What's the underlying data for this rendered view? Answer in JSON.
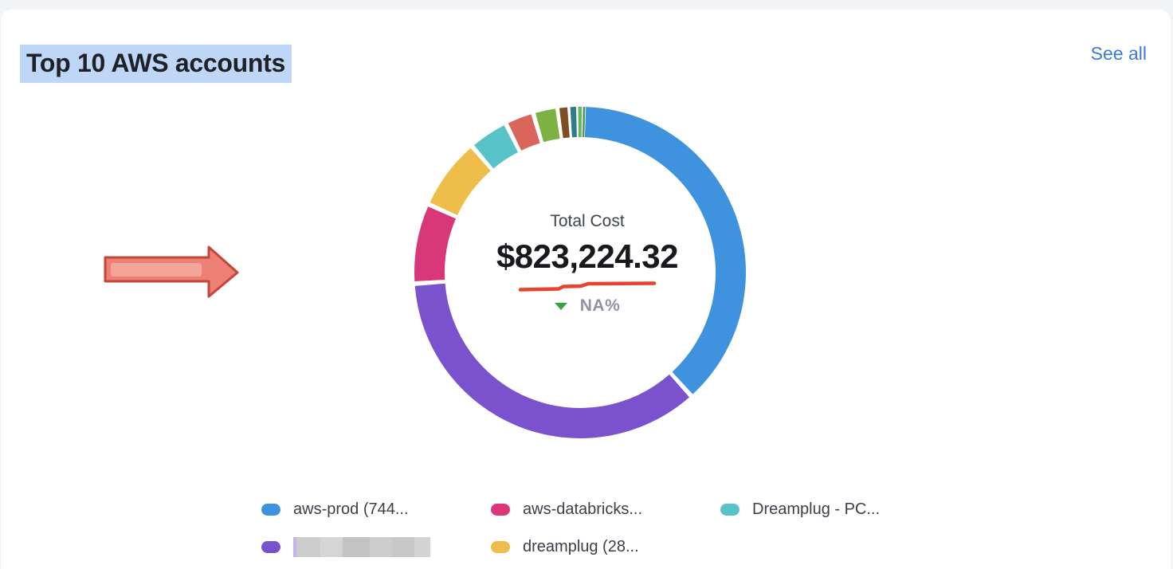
{
  "header": {
    "title": "Top 10 AWS accounts",
    "see_all_label": "See all"
  },
  "center": {
    "label": "Total Cost",
    "value": "$823,224.32",
    "delta_value": "NA%",
    "delta_direction": "down"
  },
  "chart_data": {
    "type": "pie",
    "variant": "donut",
    "title": "Top 10 AWS accounts",
    "center_label": "Total Cost",
    "center_value": "$823,224.32",
    "delta": "NA%",
    "legend_position": "bottom",
    "segments": [
      {
        "name": "aws-prod (744...",
        "percent": 38.0,
        "color": "#3E92DE",
        "redacted": false
      },
      {
        "name": "",
        "percent": 35.6,
        "color": "#7A52CD",
        "redacted": true
      },
      {
        "name": "aws-databricks...",
        "percent": 7.8,
        "color": "#D93779",
        "redacted": false
      },
      {
        "name": "dreamplug (28...",
        "percent": 7.0,
        "color": "#EFBE4A",
        "redacted": false
      },
      {
        "name": "Dreamplug - PC...",
        "percent": 3.9,
        "color": "#57C3C9",
        "redacted": false
      },
      {
        "name": "",
        "percent": 2.8,
        "color": "#D9655B",
        "redacted": false
      },
      {
        "name": "",
        "percent": 2.4,
        "color": "#7CB244",
        "redacted": false
      },
      {
        "name": "",
        "percent": 1.1,
        "color": "#7E4E22",
        "redacted": false
      },
      {
        "name": "",
        "percent": 0.8,
        "color": "#2F7C85",
        "redacted": false
      },
      {
        "name": "",
        "percent": 0.5,
        "color": "#64B55F",
        "redacted": false
      },
      {
        "name": "",
        "percent": 0.3,
        "color": "#4C9B51",
        "redacted": false
      }
    ]
  },
  "legend": {
    "items": [
      {
        "label": "aws-prod (744...",
        "color": "#3E92DE",
        "redacted": false
      },
      {
        "label": "aws-databricks...",
        "color": "#D93779",
        "redacted": false
      },
      {
        "label": "Dreamplug - PC...",
        "color": "#57C3C9",
        "redacted": false
      },
      {
        "label": "",
        "color": "#7A52CD",
        "redacted": true
      },
      {
        "label": "dreamplug (28...",
        "color": "#EFBE4A",
        "redacted": false
      }
    ]
  },
  "colors": {
    "page_background": "#f2f4f7",
    "card_background": "#ffffff",
    "title_highlight": "#bed7f6",
    "see_all_link": "#3b79dd",
    "delta_triangle": "#38a43a",
    "delta_text": "#8f93a3",
    "annotation_underline": "#e8432c",
    "annotation_arrow_fill": "#ed8074",
    "annotation_arrow_border": "#c4453a"
  }
}
